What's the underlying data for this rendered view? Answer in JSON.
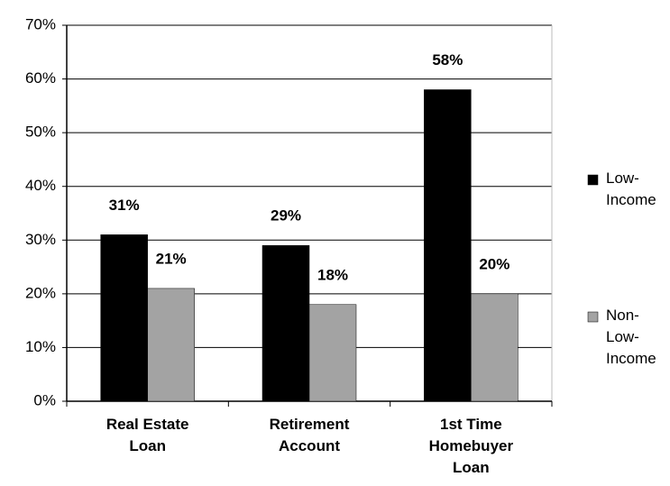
{
  "chart_data": {
    "type": "bar",
    "categories": [
      "Real Estate Loan",
      "Retirement Account",
      "1st Time Homebuyer Loan"
    ],
    "series": [
      {
        "name": "Low-Income",
        "color": "#000000",
        "values": [
          31,
          29,
          58
        ],
        "value_labels": [
          "31%",
          "29%",
          "58%"
        ]
      },
      {
        "name": "Non-Low-Income",
        "color": "#a3a3a3",
        "values": [
          21,
          18,
          20
        ],
        "value_labels": [
          "21%",
          "18%",
          "20%"
        ]
      }
    ],
    "ylim": [
      0,
      70
    ],
    "yticks": [
      {
        "value": 0,
        "label": "0%"
      },
      {
        "value": 10,
        "label": "10%"
      },
      {
        "value": 20,
        "label": "20%"
      },
      {
        "value": 30,
        "label": "30%"
      },
      {
        "value": 40,
        "label": "40%"
      },
      {
        "value": 50,
        "label": "50%"
      },
      {
        "value": 60,
        "label": "60%"
      },
      {
        "value": 70,
        "label": "70%"
      }
    ],
    "grid": true,
    "legend": "right"
  }
}
